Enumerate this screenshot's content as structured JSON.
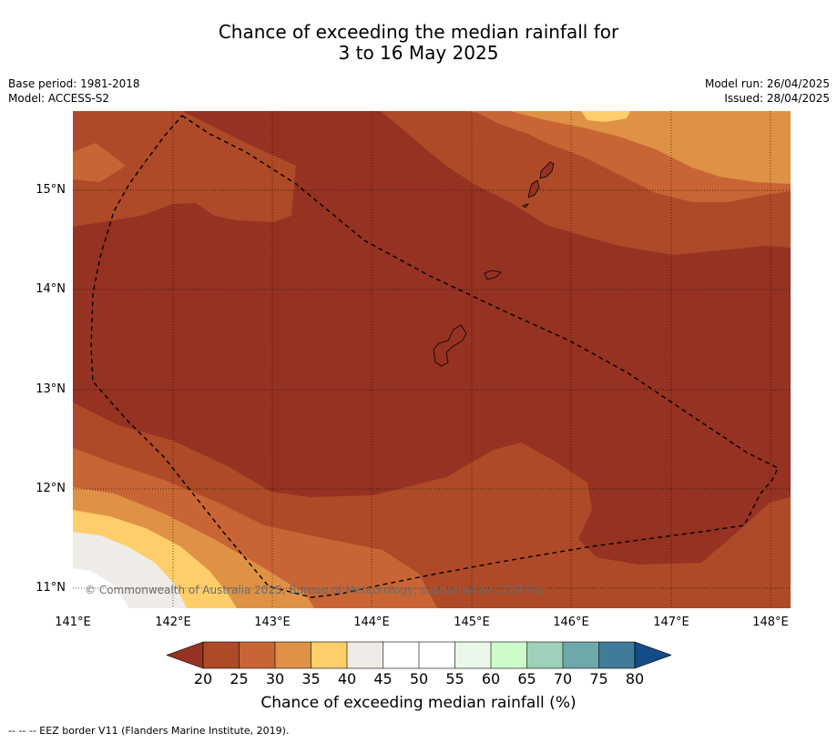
{
  "title": {
    "line1": "Chance of exceeding the median rainfall for",
    "line2": "3 to 16 May 2025"
  },
  "meta": {
    "base_period": "Base period: 1981-2018",
    "model": "Model: ACCESS-S2",
    "model_run": "Model run: 26/04/2025",
    "issued": "Issued: 28/04/2025"
  },
  "map": {
    "lon_range": [
      141.0,
      148.2
    ],
    "lat_range": [
      10.8,
      15.8
    ],
    "lon_ticks": [
      "141°E",
      "142°E",
      "143°E",
      "144°E",
      "145°E",
      "146°E",
      "147°E",
      "148°E"
    ],
    "lat_ticks": [
      "15°N",
      "14°N",
      "13°N",
      "12°N",
      "11°N"
    ],
    "copyright": "© Commonwealth of Australia 2025, Bureau of Meteorology, supported by COSPPac",
    "gridlines": "dotted",
    "border_style": "dashed"
  },
  "colorbar": {
    "ticks": [
      "20",
      "25",
      "30",
      "35",
      "40",
      "45",
      "50",
      "55",
      "60",
      "65",
      "70",
      "75",
      "80"
    ],
    "colors": {
      "below_20": "#963222",
      "20_25": "#ae4a27",
      "25_30": "#c96535",
      "30_35": "#df9245",
      "35_40": "#fece6b",
      "40_45": "#efebe7",
      "45_50": "#ffffff",
      "50_55": "#ffffff",
      "55_60": "#e9f8e9",
      "60_65": "#cdfccb",
      "65_70": "#9dd1b9",
      "70_75": "#6da8ab",
      "75_80": "#417b9a",
      "above_80": "#134c89"
    },
    "label": "Chance of exceeding median rainfall (%)"
  },
  "footnote": "--  --  -- EEZ border V11 (Flanders Marine Institute, 2019)."
}
